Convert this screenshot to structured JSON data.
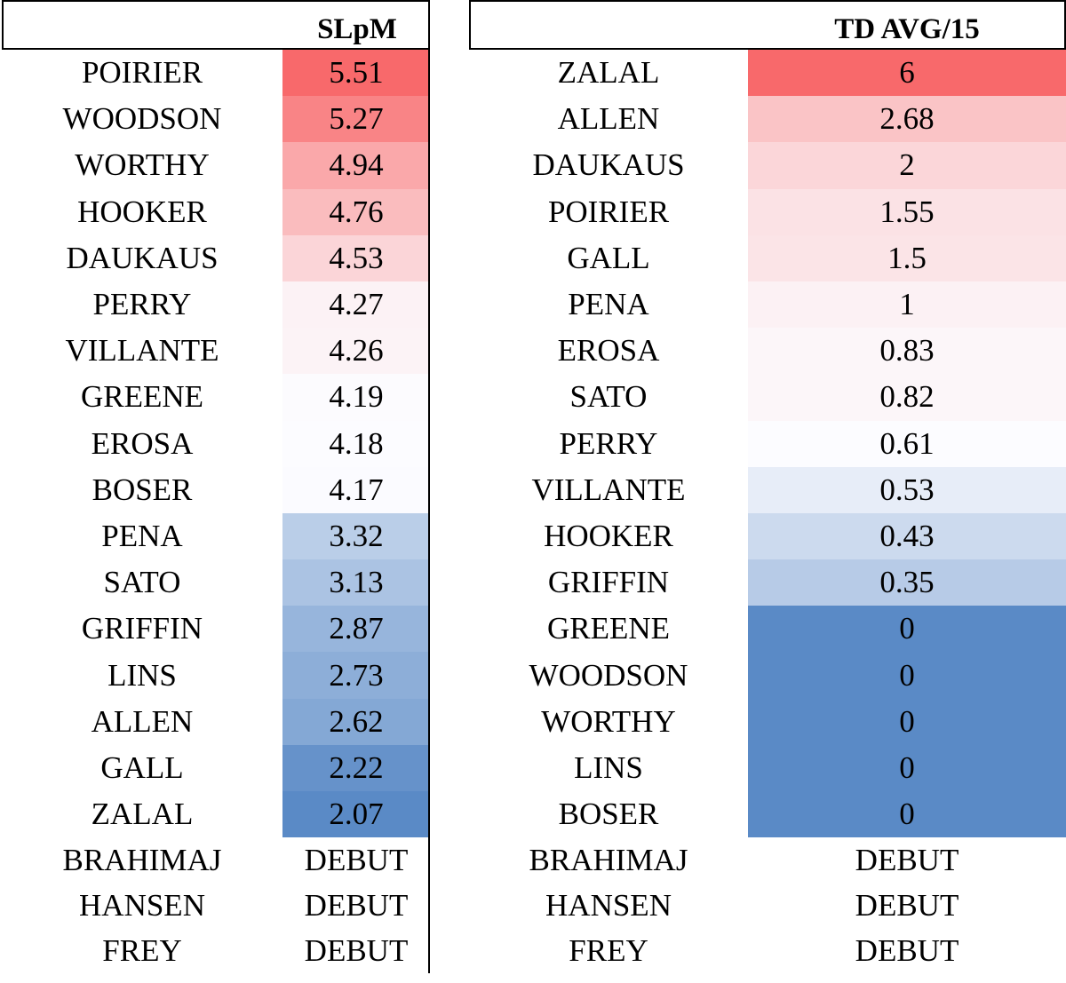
{
  "chart_data": [
    {
      "type": "table",
      "title": "SLpM",
      "color_scale": {
        "high": "#f8696b",
        "mid": "#fcfcff",
        "low": "#5a8ac6"
      },
      "rows": [
        {
          "name": "POIRIER",
          "value": "5.51"
        },
        {
          "name": "WOODSON",
          "value": "5.27"
        },
        {
          "name": "WORTHY",
          "value": "4.94"
        },
        {
          "name": "HOOKER",
          "value": "4.76"
        },
        {
          "name": "DAUKAUS",
          "value": "4.53"
        },
        {
          "name": "PERRY",
          "value": "4.27"
        },
        {
          "name": "VILLANTE",
          "value": "4.26"
        },
        {
          "name": "GREENE",
          "value": "4.19"
        },
        {
          "name": "EROSA",
          "value": "4.18"
        },
        {
          "name": "BOSER",
          "value": "4.17"
        },
        {
          "name": "PENA",
          "value": "3.32"
        },
        {
          "name": "SATO",
          "value": "3.13"
        },
        {
          "name": "GRIFFIN",
          "value": "2.87"
        },
        {
          "name": "LINS",
          "value": "2.73"
        },
        {
          "name": "ALLEN",
          "value": "2.62"
        },
        {
          "name": "GALL",
          "value": "2.22"
        },
        {
          "name": "ZALAL",
          "value": "2.07"
        },
        {
          "name": "BRAHIMAJ",
          "value": "DEBUT"
        },
        {
          "name": "HANSEN",
          "value": "DEBUT"
        },
        {
          "name": "FREY",
          "value": "DEBUT"
        }
      ]
    },
    {
      "type": "table",
      "title": "TD AVG/15",
      "color_scale": {
        "high": "#f8696b",
        "mid": "#fcfcff",
        "low": "#5a8ac6"
      },
      "rows": [
        {
          "name": "ZALAL",
          "value": "6"
        },
        {
          "name": "ALLEN",
          "value": "2.68"
        },
        {
          "name": "DAUKAUS",
          "value": "2"
        },
        {
          "name": "POIRIER",
          "value": "1.55"
        },
        {
          "name": "GALL",
          "value": "1.5"
        },
        {
          "name": "PENA",
          "value": "1"
        },
        {
          "name": "EROSA",
          "value": "0.83"
        },
        {
          "name": "SATO",
          "value": "0.82"
        },
        {
          "name": "PERRY",
          "value": "0.61"
        },
        {
          "name": "VILLANTE",
          "value": "0.53"
        },
        {
          "name": "HOOKER",
          "value": "0.43"
        },
        {
          "name": "GRIFFIN",
          "value": "0.35"
        },
        {
          "name": "GREENE",
          "value": "0"
        },
        {
          "name": "WOODSON",
          "value": "0"
        },
        {
          "name": "WORTHY",
          "value": "0"
        },
        {
          "name": "LINS",
          "value": "0"
        },
        {
          "name": "BOSER",
          "value": "0"
        },
        {
          "name": "BRAHIMAJ",
          "value": "DEBUT"
        },
        {
          "name": "HANSEN",
          "value": "DEBUT"
        },
        {
          "name": "FREY",
          "value": "DEBUT"
        }
      ]
    }
  ]
}
